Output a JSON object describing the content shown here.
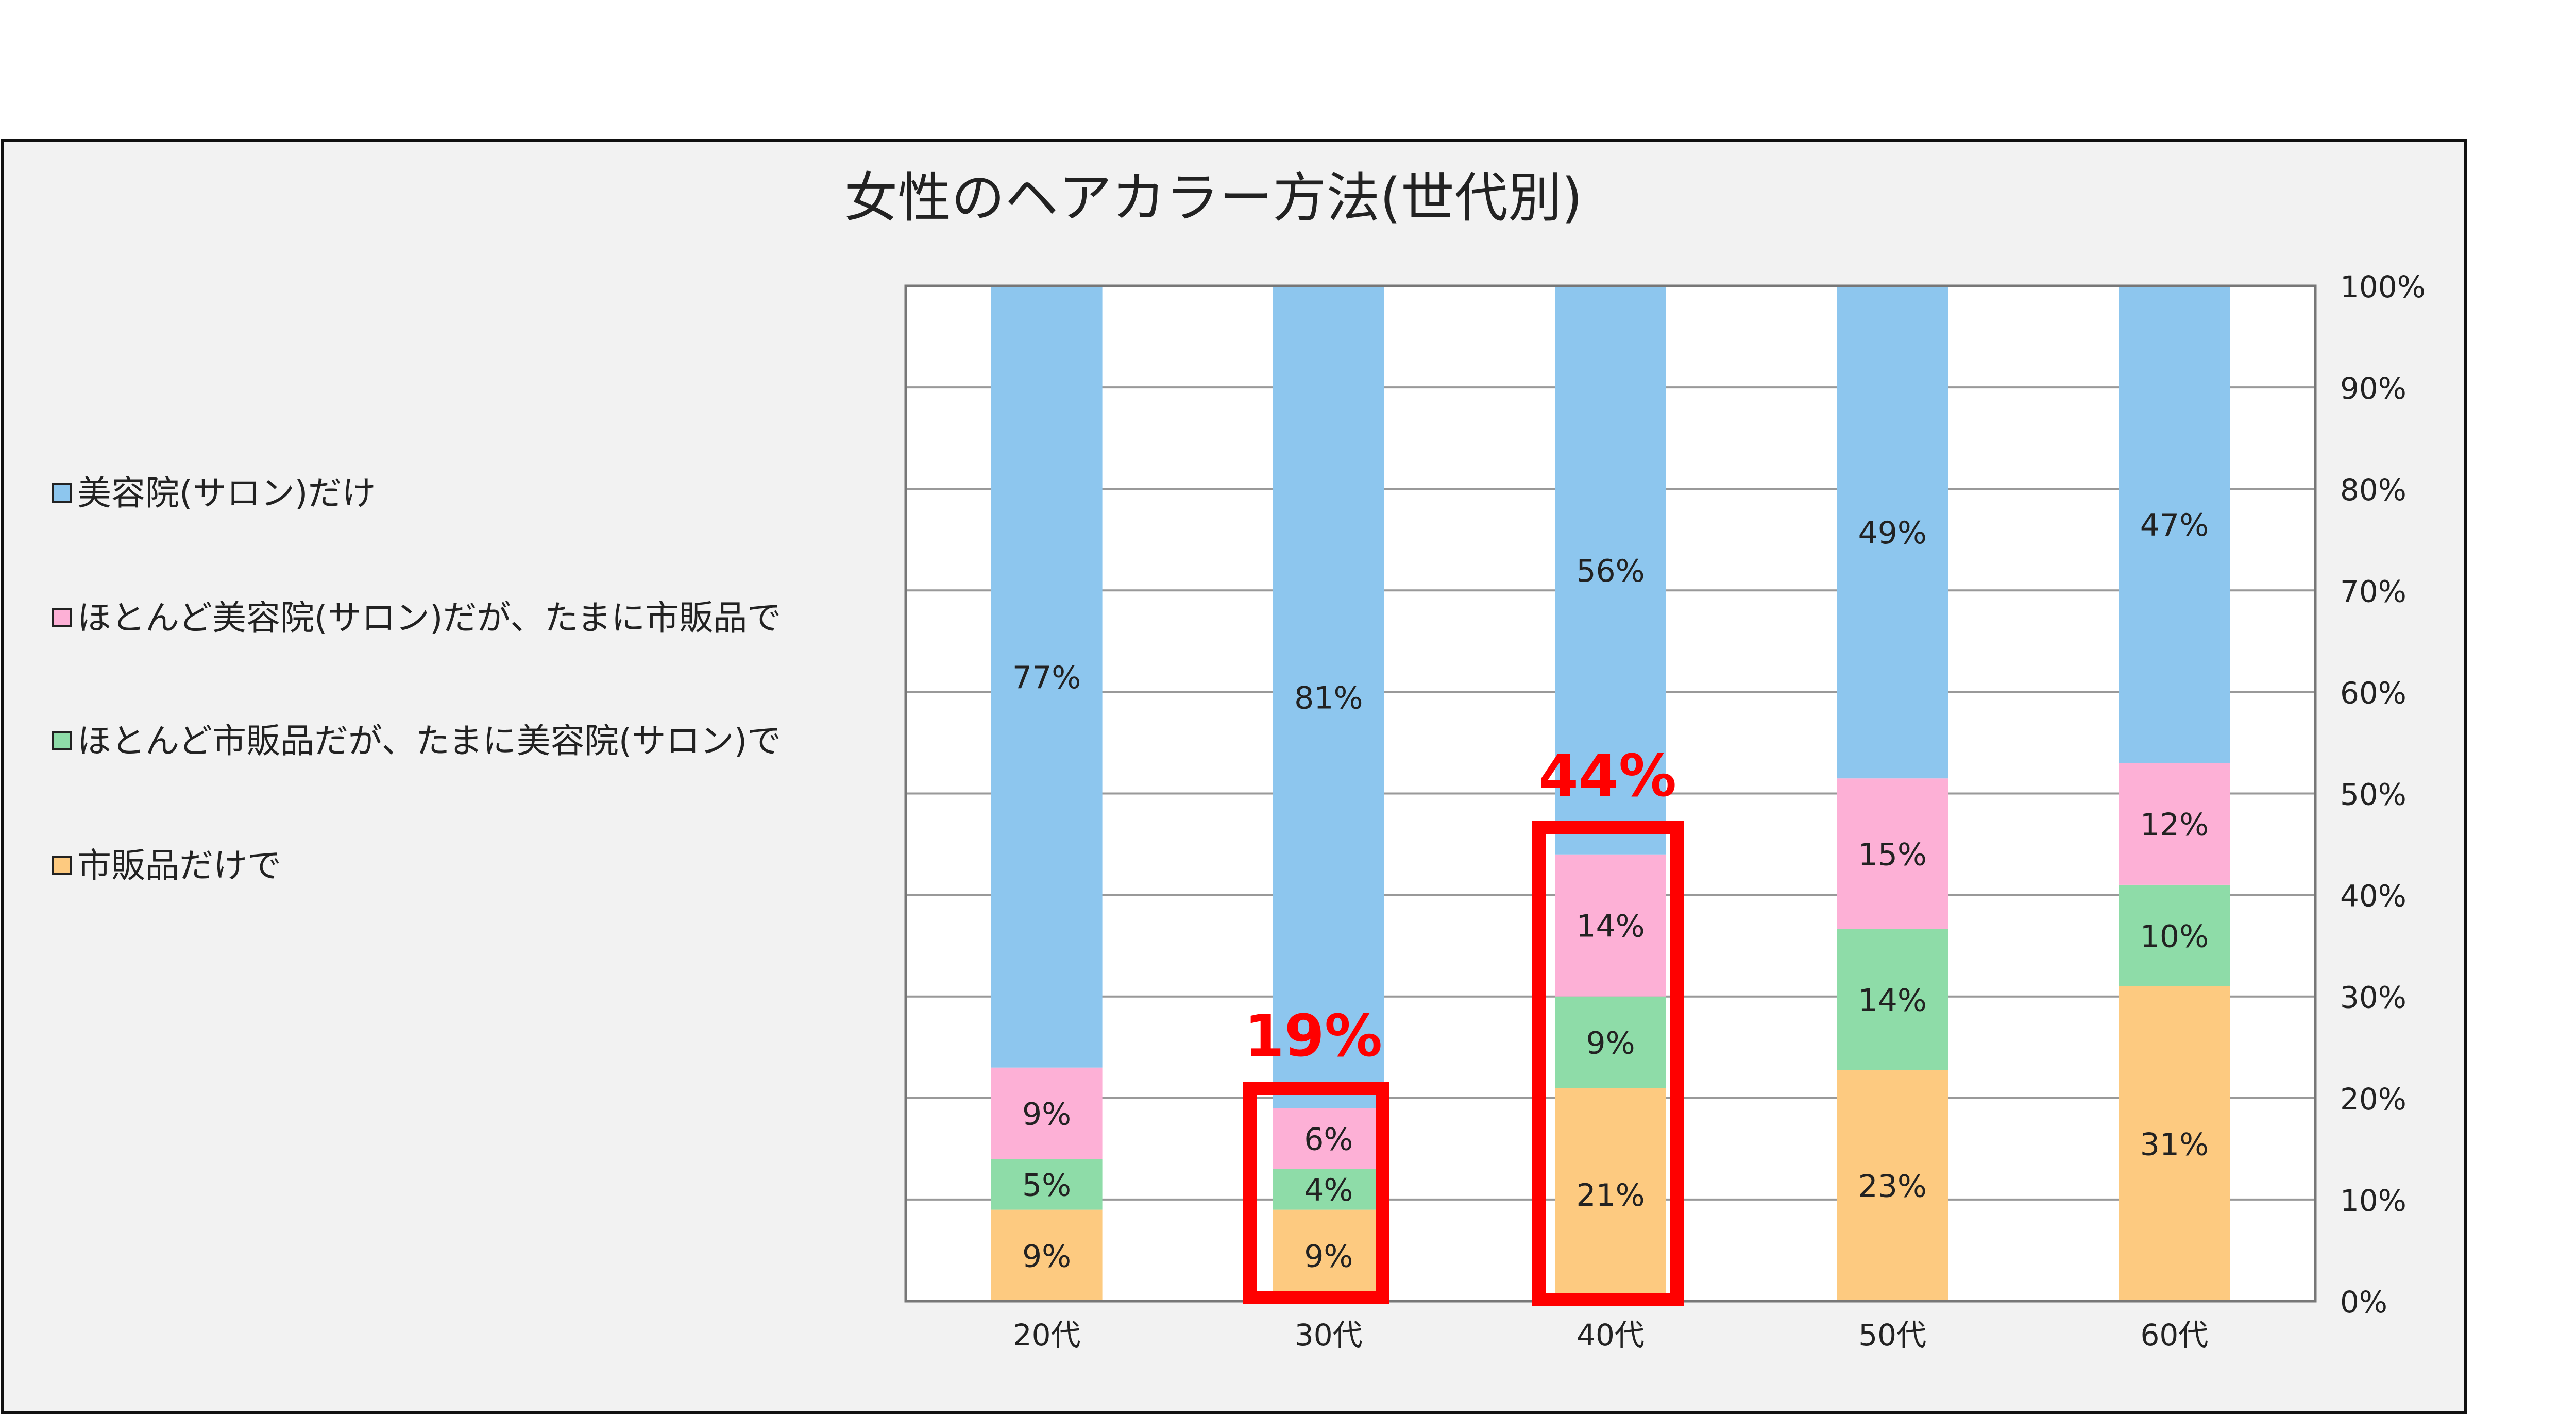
{
  "chart_data": {
    "type": "bar",
    "stacked": "percent",
    "title": "女性のヘアカラー方法(世代別)",
    "xlabel": "",
    "ylabel": "",
    "ylim": [
      0,
      100
    ],
    "y_ticks": [
      "0%",
      "10%",
      "20%",
      "30%",
      "40%",
      "50%",
      "60%",
      "70%",
      "80%",
      "90%",
      "100%"
    ],
    "y_axis_side": "right",
    "grid": true,
    "legend_position": "left",
    "categories": [
      "20代",
      "30代",
      "40代",
      "50代",
      "60代"
    ],
    "series": [
      {
        "name": "市販品だけで",
        "color": "#FDCA80",
        "values": [
          9,
          9,
          21,
          23,
          31
        ]
      },
      {
        "name": "ほとんど市販品だが、たまに美容院(サロン)で",
        "color": "#8EDCA8",
        "values": [
          5,
          4,
          9,
          14,
          10
        ]
      },
      {
        "name": "ほとんど美容院(サロン)だが、たまに市販品で",
        "color": "#FDB0D6",
        "values": [
          9,
          6,
          14,
          15,
          12
        ]
      },
      {
        "name": "美容院(サロン)だけ",
        "color": "#8DC6EE",
        "values": [
          77,
          81,
          56,
          49,
          47
        ]
      }
    ],
    "legend_order": [
      3,
      2,
      1,
      0
    ],
    "annotations": [
      {
        "text": "19%",
        "category": "30代",
        "color": "#FF0000"
      },
      {
        "text": "44%",
        "category": "40代",
        "color": "#FF0000"
      }
    ]
  }
}
